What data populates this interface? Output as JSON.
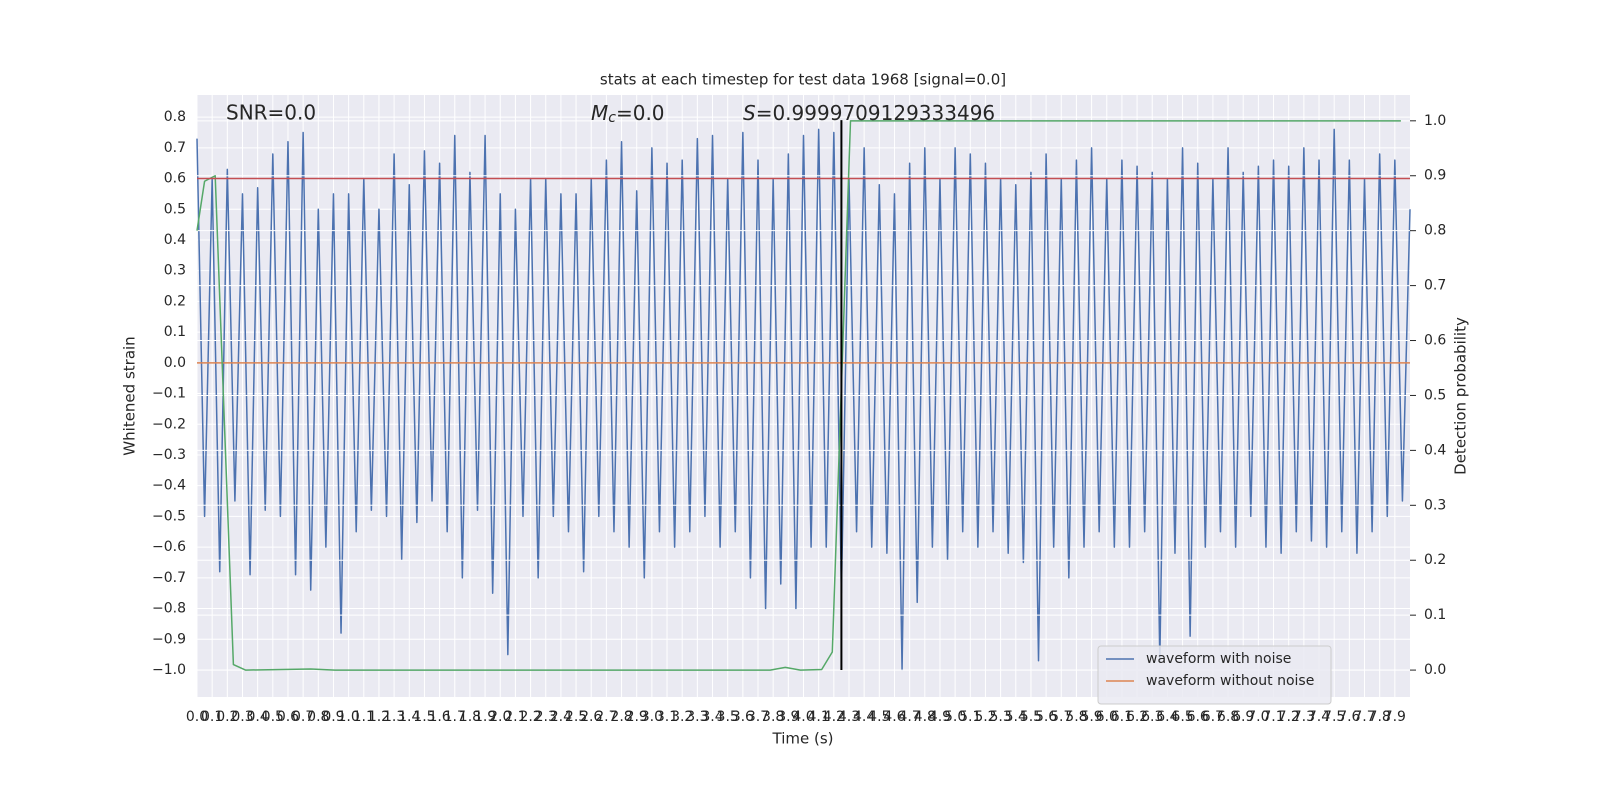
{
  "chart_data": {
    "type": "line",
    "title": "stats at each timestep for test data 1968 [signal=0.0]",
    "xlabel": "Time (s)",
    "ylabel": "Whitened strain",
    "y2label": "Detection probability",
    "annotations": [
      {
        "text": "SNR=0.0"
      },
      {
        "symbol": "M",
        "subscript": "c",
        "text": "=0.0"
      },
      {
        "symbol": "S",
        "text": "=0.9999709129333496"
      }
    ],
    "xlim": [
      0,
      8.0
    ],
    "ylim": [
      -1.088,
      0.872
    ],
    "y2lim": [
      -0.049,
      1.047
    ],
    "xticks": [
      {
        "value": 0,
        "label": "0.0"
      },
      0.1,
      0.2,
      0.3,
      0.4,
      0.5,
      0.6,
      0.7,
      0.8,
      0.9,
      {
        "value": 1,
        "label": "1.0"
      },
      1.1,
      1.2,
      1.3,
      1.4,
      1.5,
      1.6,
      1.7,
      1.8,
      1.9,
      {
        "value": 2,
        "label": "2.0"
      },
      2.1,
      2.2,
      2.3,
      2.4,
      2.5,
      2.6,
      2.7,
      2.8,
      2.9,
      {
        "value": 3,
        "label": "3.0"
      },
      3.1,
      3.2,
      3.3,
      3.4,
      3.5,
      3.6,
      3.7,
      3.8,
      3.9,
      {
        "value": 4,
        "label": "4.0"
      },
      4.1,
      4.2,
      4.3,
      4.4,
      4.5,
      4.6,
      4.7,
      4.8,
      4.9,
      {
        "value": 5,
        "label": "5.0"
      },
      5.1,
      5.2,
      5.3,
      5.4,
      5.5,
      5.6,
      5.7,
      5.8,
      5.9,
      {
        "value": 6,
        "label": "6.0"
      },
      6.1,
      6.2,
      6.3,
      6.4,
      6.5,
      6.6,
      6.7,
      6.8,
      6.9,
      {
        "value": 7,
        "label": "7.0"
      },
      7.1,
      7.2,
      7.3,
      7.4,
      7.5,
      7.6,
      7.7,
      7.8,
      7.9
    ],
    "yticks": [
      {
        "value": -1,
        "label": "−1.0"
      },
      {
        "value": -0.9,
        "label": "−0.9"
      },
      {
        "value": -0.8,
        "label": "−0.8"
      },
      {
        "value": -0.7,
        "label": "−0.7"
      },
      {
        "value": -0.6,
        "label": "−0.6"
      },
      {
        "value": -0.5,
        "label": "−0.5"
      },
      {
        "value": -0.4,
        "label": "−0.4"
      },
      {
        "value": -0.3,
        "label": "−0.3"
      },
      {
        "value": -0.2,
        "label": "−0.2"
      },
      {
        "value": -0.1,
        "label": "−0.1"
      },
      {
        "value": 0,
        "label": "0.0"
      },
      0.1,
      0.2,
      0.3,
      0.4,
      0.5,
      0.6,
      0.7,
      0.8
    ],
    "y2ticks": [
      {
        "value": 0,
        "label": "0.0"
      },
      0.1,
      0.2,
      0.3,
      0.4,
      0.5,
      0.6,
      0.7,
      0.8,
      0.9,
      {
        "value": 1,
        "label": "1.0"
      }
    ],
    "grid": true,
    "legend": "lower right",
    "hlines": [
      {
        "value": 0.6,
        "color": "#c44e52"
      }
    ],
    "vlines": [
      {
        "x": 4.25,
        "ymin": -1.0,
        "ymax": 0.79,
        "color": "#000000"
      }
    ],
    "series": [
      {
        "name": "waveform with noise",
        "color": "#4c72b0",
        "x": [
          0,
          0.05,
          0.1,
          0.15,
          0.2,
          0.25,
          0.3,
          0.35,
          0.4,
          0.45,
          0.5,
          0.55,
          0.6,
          0.65,
          0.7,
          0.75,
          0.8,
          0.85,
          0.9,
          0.95,
          1,
          1.05,
          1.1,
          1.15,
          1.2,
          1.25,
          1.3,
          1.35,
          1.4,
          1.45,
          1.5,
          1.55,
          1.6,
          1.65,
          1.7,
          1.75,
          1.8,
          1.85,
          1.9,
          1.95,
          2,
          2.05,
          2.1,
          2.15,
          2.2,
          2.25,
          2.3,
          2.35,
          2.4,
          2.45,
          2.5,
          2.55,
          2.6,
          2.65,
          2.7,
          2.75,
          2.8,
          2.85,
          2.9,
          2.95,
          3,
          3.05,
          3.1,
          3.15,
          3.2,
          3.25,
          3.3,
          3.35,
          3.4,
          3.45,
          3.5,
          3.55,
          3.6,
          3.65,
          3.7,
          3.75,
          3.8,
          3.85,
          3.9,
          3.95,
          4,
          4.05,
          4.1,
          4.15,
          4.2,
          4.25,
          4.3,
          4.35,
          4.4,
          4.45,
          4.5,
          4.55,
          4.6,
          4.65,
          4.7,
          4.75,
          4.8,
          4.85,
          4.9,
          4.95,
          5,
          5.05,
          5.1,
          5.15,
          5.2,
          5.25,
          5.3,
          5.35,
          5.4,
          5.45,
          5.5,
          5.55,
          5.6,
          5.65,
          5.7,
          5.75,
          5.8,
          5.85,
          5.9,
          5.95,
          6,
          6.05,
          6.1,
          6.15,
          6.2,
          6.25,
          6.3,
          6.35,
          6.4,
          6.45,
          6.5,
          6.55,
          6.6,
          6.65,
          6.7,
          6.75,
          6.8,
          6.85,
          6.9,
          6.95,
          7,
          7.05,
          7.1,
          7.15,
          7.2,
          7.25,
          7.3,
          7.35,
          7.4,
          7.45,
          7.5,
          7.55,
          7.6,
          7.65,
          7.7,
          7.75,
          7.8,
          7.85,
          7.9,
          7.95,
          8.0
        ],
        "values": [
          0.73,
          -0.5,
          0.6,
          -0.68,
          0.63,
          -0.45,
          0.55,
          -0.69,
          0.57,
          -0.48,
          0.68,
          -0.5,
          0.72,
          -0.69,
          0.75,
          -0.74,
          0.5,
          -0.6,
          0.55,
          -0.88,
          0.55,
          -0.55,
          0.6,
          -0.48,
          0.5,
          -0.5,
          0.68,
          -0.64,
          0.58,
          -0.52,
          0.69,
          -0.45,
          0.65,
          -0.55,
          0.74,
          -0.7,
          0.62,
          -0.48,
          0.74,
          -0.75,
          0.55,
          -0.95,
          0.5,
          -0.5,
          0.6,
          -0.7,
          0.6,
          -0.5,
          0.55,
          -0.55,
          0.55,
          -0.68,
          0.6,
          -0.5,
          0.66,
          -0.55,
          0.72,
          -0.6,
          0.56,
          -0.7,
          0.7,
          -0.55,
          0.65,
          -0.6,
          0.66,
          -0.55,
          0.73,
          -0.5,
          0.74,
          -0.6,
          0.6,
          -0.55,
          0.75,
          -0.7,
          0.66,
          -0.8,
          0.6,
          -0.72,
          0.68,
          -0.8,
          0.74,
          -0.6,
          0.76,
          -0.6,
          0.75,
          -0.75,
          0.6,
          -0.55,
          0.7,
          -0.6,
          0.58,
          -0.62,
          0.55,
          -1.0,
          0.65,
          -0.78,
          0.7,
          -0.6,
          0.6,
          -0.64,
          0.7,
          -0.55,
          0.68,
          -0.6,
          0.65,
          -0.55,
          0.6,
          -0.62,
          0.58,
          -0.65,
          0.62,
          -0.97,
          0.68,
          -0.6,
          0.6,
          -0.7,
          0.66,
          -0.6,
          0.7,
          -0.55,
          0.6,
          -0.6,
          0.66,
          -0.6,
          0.64,
          -0.55,
          0.62,
          -0.97,
          0.6,
          -0.62,
          0.7,
          -0.89,
          0.65,
          -0.6,
          0.6,
          -0.55,
          0.7,
          -0.6,
          0.62,
          -0.5,
          0.64,
          -0.6,
          0.66,
          -0.62,
          0.64,
          -0.55,
          0.7,
          -0.58,
          0.66,
          -0.6,
          0.76,
          -0.55,
          0.66,
          -0.62,
          0.6,
          -0.55,
          0.68,
          -0.5,
          0.66,
          -0.45,
          0.5
        ]
      },
      {
        "name": "waveform without noise",
        "color": "#dd8452",
        "x": [
          0,
          8.0
        ],
        "values": [
          0,
          0
        ]
      },
      {
        "color": "#55a868",
        "axis": "y2",
        "x": [
          0,
          0.05,
          0.12,
          0.24,
          0.32,
          0.75,
          0.91,
          3.78,
          3.88,
          3.98,
          4.12,
          4.19,
          4.31,
          7.94
        ],
        "values": [
          0.8,
          0.89,
          0.9,
          0.01,
          0,
          0.002,
          0,
          0,
          0.005,
          0,
          0.001,
          0.033,
          1.0,
          1.0
        ]
      }
    ]
  }
}
